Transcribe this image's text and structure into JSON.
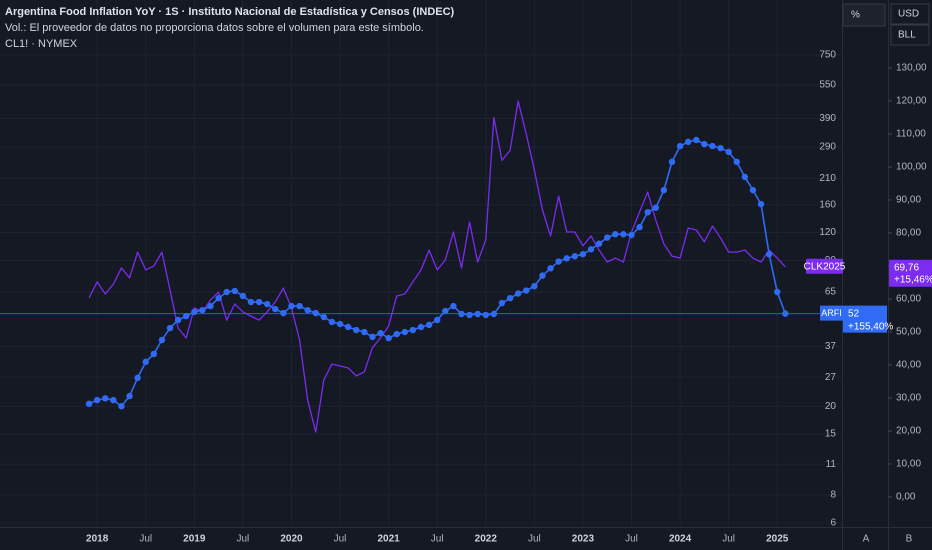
{
  "chart_data": {
    "type": "line",
    "title": "Argentina Food Inflation YoY · 1S · Instituto Nacional de Estadística y Censos (INDEC)",
    "subtitle": "Vol.: El proveedor de datos no proporciona datos sobre el volumen para este símbolo.",
    "annotations": [
      "CL1! · NYMEX"
    ],
    "x": [
      "2017-12",
      "2018-01",
      "2018-02",
      "2018-03",
      "2018-04",
      "2018-05",
      "2018-06",
      "2018-07",
      "2018-08",
      "2018-09",
      "2018-10",
      "2018-11",
      "2018-12",
      "2019-01",
      "2019-02",
      "2019-03",
      "2019-04",
      "2019-05",
      "2019-06",
      "2019-07",
      "2019-08",
      "2019-09",
      "2019-10",
      "2019-11",
      "2019-12",
      "2020-01",
      "2020-02",
      "2020-03",
      "2020-04",
      "2020-05",
      "2020-06",
      "2020-07",
      "2020-08",
      "2020-09",
      "2020-10",
      "2020-11",
      "2020-12",
      "2021-01",
      "2021-02",
      "2021-03",
      "2021-04",
      "2021-05",
      "2021-06",
      "2021-07",
      "2021-08",
      "2021-09",
      "2021-10",
      "2021-11",
      "2021-12",
      "2022-01",
      "2022-02",
      "2022-03",
      "2022-04",
      "2022-05",
      "2022-06",
      "2022-07",
      "2022-08",
      "2022-09",
      "2022-10",
      "2022-11",
      "2022-12",
      "2023-01",
      "2023-02",
      "2023-03",
      "2023-04",
      "2023-05",
      "2023-06",
      "2023-07",
      "2023-08",
      "2023-09",
      "2023-10",
      "2023-11",
      "2023-12",
      "2024-01",
      "2024-02",
      "2024-03",
      "2024-04",
      "2024-05",
      "2024-06",
      "2024-07",
      "2024-08",
      "2024-09",
      "2024-10",
      "2024-11",
      "2024-12",
      "2025-01",
      "2025-02"
    ],
    "xlim": [
      "2017-01",
      "2025-09"
    ],
    "xticks": [
      {
        "value": "2018-01",
        "label": "2018"
      },
      {
        "value": "2018-07",
        "label": "Jul"
      },
      {
        "value": "2019-01",
        "label": "2019"
      },
      {
        "value": "2019-07",
        "label": "Jul"
      },
      {
        "value": "2020-01",
        "label": "2020"
      },
      {
        "value": "2020-07",
        "label": "Jul"
      },
      {
        "value": "2021-01",
        "label": "2021"
      },
      {
        "value": "2021-07",
        "label": "Jul"
      },
      {
        "value": "2022-01",
        "label": "2022"
      },
      {
        "value": "2022-07",
        "label": "Jul"
      },
      {
        "value": "2023-01",
        "label": "2023"
      },
      {
        "value": "2023-07",
        "label": "Jul"
      },
      {
        "value": "2024-01",
        "label": "2024"
      },
      {
        "value": "2024-07",
        "label": "Jul"
      },
      {
        "value": "2025-01",
        "label": "2025"
      }
    ],
    "ylog": true,
    "ylim": [
      5.75,
      1323
    ],
    "yticks": [
      750,
      550,
      390,
      290,
      210,
      160,
      120,
      90,
      65,
      37,
      27,
      20,
      15,
      11,
      8,
      6
    ],
    "y2lim": [
      -9.1,
      150.6
    ],
    "y2ticks": [
      {
        "value": 0,
        "label": "0,00"
      },
      {
        "value": 10,
        "label": "10,00"
      },
      {
        "value": 20,
        "label": "20,00"
      },
      {
        "value": 30,
        "label": "30,00"
      },
      {
        "value": 40,
        "label": "40,00"
      },
      {
        "value": 50,
        "label": "50,00"
      },
      {
        "value": 60,
        "label": "60,00"
      },
      {
        "value": 70,
        "label": "70,00"
      },
      {
        "value": 80,
        "label": "80,00"
      },
      {
        "value": 90,
        "label": "90,00"
      },
      {
        "value": 100,
        "label": "100,00"
      },
      {
        "value": 110,
        "label": "110,00"
      },
      {
        "value": 120,
        "label": "120,00"
      },
      {
        "value": 130,
        "label": "130,00"
      }
    ],
    "grid": true,
    "series": [
      {
        "name": "ARFI",
        "color": "#2f6bf5",
        "markers": true,
        "axis": "y",
        "change": "+155,40%",
        "values": [
          20.5,
          21.3,
          21.7,
          21.3,
          20.0,
          22.2,
          26.8,
          31.6,
          34.3,
          39.6,
          44.8,
          48.7,
          50.7,
          52.9,
          53.9,
          56.2,
          61.0,
          65.0,
          65.7,
          62.4,
          58.6,
          58.6,
          57.4,
          54.5,
          52.3,
          56.2,
          56.2,
          53.9,
          52.3,
          50.2,
          47.7,
          46.7,
          45.3,
          43.9,
          43.0,
          40.9,
          42.5,
          40.4,
          42.1,
          43.0,
          43.9,
          45.3,
          46.3,
          48.7,
          53.4,
          56.2,
          51.8,
          51.3,
          51.8,
          51.3,
          51.8,
          58,
          61,
          64,
          66,
          69,
          77,
          83,
          89,
          92,
          94,
          96,
          101,
          107,
          114,
          118,
          118,
          117,
          127,
          148,
          155,
          186,
          249,
          293,
          306,
          312,
          299,
          293,
          287,
          276,
          249,
          213,
          186,
          161,
          96,
          65,
          52
        ]
      },
      {
        "name": "CLK2025",
        "color": "#7b2cf0",
        "markers": false,
        "axis": "y2",
        "last_label": "69,76",
        "change": "+15,46%",
        "values": [
          60.3,
          65.2,
          61.5,
          64.5,
          69.4,
          66.4,
          74.2,
          68.8,
          70.0,
          74.2,
          62.7,
          51.2,
          48.2,
          57.3,
          56.1,
          59.7,
          62.1,
          53.6,
          58.5,
          56.1,
          54.8,
          53.6,
          56.1,
          59.1,
          63.3,
          57.3,
          47.6,
          29.4,
          19.7,
          35.5,
          40.3,
          39.7,
          39.1,
          36.7,
          37.9,
          45.2,
          48.2,
          51.8,
          60.9,
          61.5,
          65.2,
          68.8,
          74.8,
          68.8,
          71.8,
          80.3,
          69.4,
          83.3,
          71.2,
          77.9,
          115,
          102,
          105,
          120,
          110,
          99.1,
          87.0,
          79.1,
          91.2,
          80.3,
          80.3,
          76.1,
          79.1,
          74.8,
          71.2,
          72.4,
          71.2,
          80.3,
          86.4,
          92.4,
          83.9,
          76.7,
          73.0,
          72.4,
          81.5,
          80.9,
          77.3,
          82.1,
          78.5,
          74.2,
          74.2,
          74.8,
          72.4,
          71.2,
          74.8,
          72.4,
          69.76
        ]
      }
    ]
  },
  "toolbar": {
    "percent": "%",
    "currency": "USD",
    "unit": "BLL",
    "auto": "A",
    "mode": "B"
  }
}
